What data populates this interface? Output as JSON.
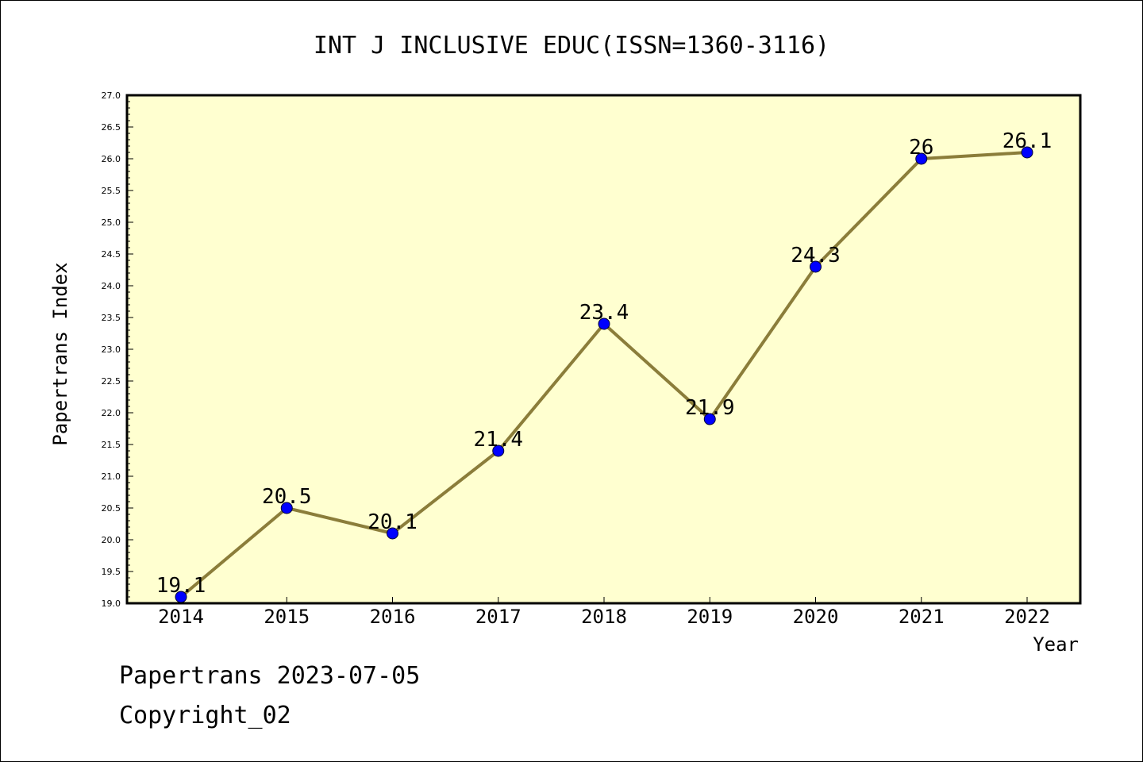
{
  "chart_data": {
    "type": "line",
    "title": "INT J INCLUSIVE EDUC(ISSN=1360-3116)",
    "xlabel": "Year",
    "ylabel": "Papertrans Index",
    "categories": [
      "2014",
      "2015",
      "2016",
      "2017",
      "2018",
      "2019",
      "2020",
      "2021",
      "2022"
    ],
    "series": [
      {
        "values": [
          19.1,
          20.5,
          20.1,
          21.4,
          23.4,
          21.9,
          24.3,
          26.0,
          26.1
        ],
        "labels": [
          "19.1",
          "20.5",
          "20.1",
          "21.4",
          "23.4",
          "21.9",
          "24.3",
          "26",
          "26.1"
        ]
      }
    ],
    "ylim": [
      19.0,
      27.0
    ],
    "ytick_labels": [
      "19.0",
      "19.5",
      "20.0",
      "20.5",
      "21.0",
      "21.5",
      "22.0",
      "22.5",
      "23.0",
      "23.5",
      "24.0",
      "24.5",
      "25.0",
      "25.5",
      "26.0",
      "26.5",
      "27.0"
    ],
    "grid": false,
    "legend": "none",
    "colors": {
      "plot_background": "#ffffd0",
      "line": "#8b7d3a",
      "marker": "#0000ff",
      "frame": "#000000"
    }
  },
  "footer": {
    "line1": "Papertrans 2023-07-05",
    "line2": "Copyright_02"
  }
}
